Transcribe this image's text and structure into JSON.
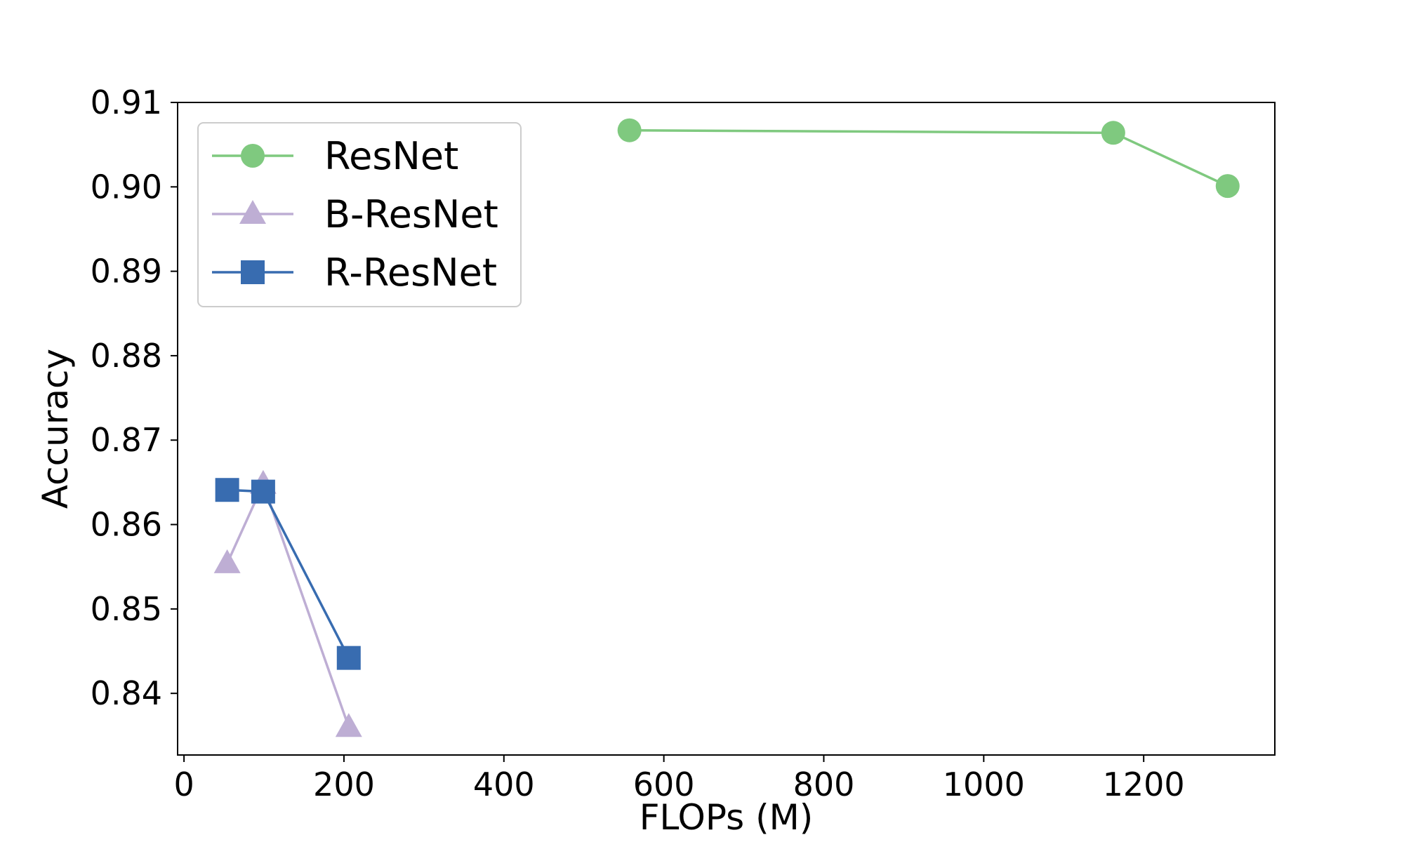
{
  "chart_data": {
    "type": "line",
    "title": "",
    "xlabel": "FLOPs (M)",
    "ylabel": "Accuracy",
    "xlim": [
      -8,
      1364
    ],
    "ylim": [
      0.8327,
      0.91
    ],
    "xticks": [
      0,
      200,
      400,
      600,
      800,
      1000,
      1200
    ],
    "xtick_labels": [
      "0",
      "200",
      "400",
      "600",
      "800",
      "1000",
      "1200"
    ],
    "yticks": [
      0.84,
      0.85,
      0.86,
      0.87,
      0.88,
      0.89,
      0.9,
      0.91
    ],
    "ytick_labels": [
      "0.84",
      "0.85",
      "0.86",
      "0.87",
      "0.88",
      "0.89",
      "0.90",
      "0.91"
    ],
    "grid": false,
    "legend_position": "top-left",
    "series": [
      {
        "name": "ResNet",
        "color": "#7fc97f",
        "marker": "circle",
        "x": [
          557,
          1162,
          1305
        ],
        "y": [
          0.9067,
          0.9064,
          0.9001
        ]
      },
      {
        "name": "B-ResNet",
        "color": "#beaed4",
        "marker": "triangle",
        "x": [
          54,
          99,
          206
        ],
        "y": [
          0.8554,
          0.8648,
          0.836
        ]
      },
      {
        "name": "R-ResNet",
        "color": "#386cb0",
        "marker": "square",
        "x": [
          54,
          99,
          206
        ],
        "y": [
          0.8641,
          0.8639,
          0.8442
        ]
      }
    ]
  }
}
